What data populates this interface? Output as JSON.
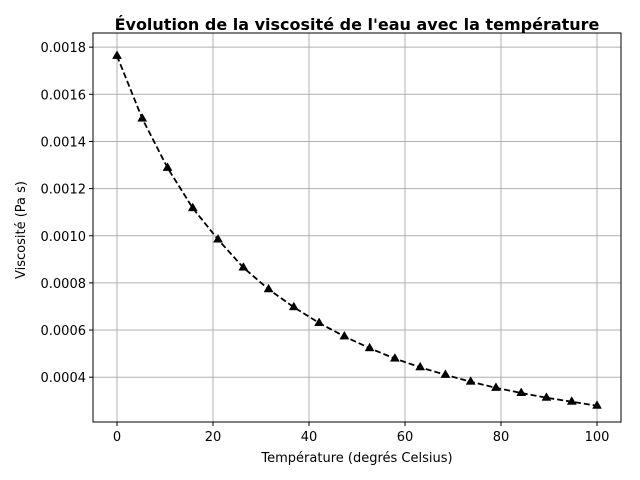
{
  "chart_data": {
    "type": "line",
    "title": "Évolution de la viscosité de l'eau avec la température",
    "xlabel": "Température (degrés Celsius)",
    "ylabel": "Viscosité (Pa s)",
    "xlim": [
      -5,
      105
    ],
    "ylim": [
      0.00021,
      0.00186
    ],
    "xticks": [
      0,
      20,
      40,
      60,
      80,
      100
    ],
    "xtick_labels": [
      "0",
      "20",
      "40",
      "60",
      "80",
      "100"
    ],
    "yticks": [
      0.0004,
      0.0006,
      0.0008,
      0.001,
      0.0012,
      0.0014,
      0.0016,
      0.0018
    ],
    "ytick_labels": [
      "0.0004",
      "0.0006",
      "0.0008",
      "0.0010",
      "0.0012",
      "0.0014",
      "0.0016",
      "0.0018"
    ],
    "grid": true,
    "series": [
      {
        "color": "#000000",
        "line_style": "dashed",
        "marker": "triangle-up",
        "x": [
          0,
          5.26,
          10.53,
          15.79,
          21.05,
          26.32,
          31.58,
          36.84,
          42.11,
          47.37,
          52.63,
          57.89,
          63.16,
          68.42,
          73.68,
          78.95,
          84.21,
          89.47,
          94.74,
          100
        ],
        "y": [
          0.001763,
          0.001497,
          0.001288,
          0.001117,
          0.000984,
          0.000865,
          0.000773,
          0.000697,
          0.00063,
          0.000573,
          0.000523,
          0.000479,
          0.000442,
          0.00041,
          0.000381,
          0.000355,
          0.000333,
          0.000313,
          0.000296,
          0.000279
        ]
      }
    ]
  }
}
